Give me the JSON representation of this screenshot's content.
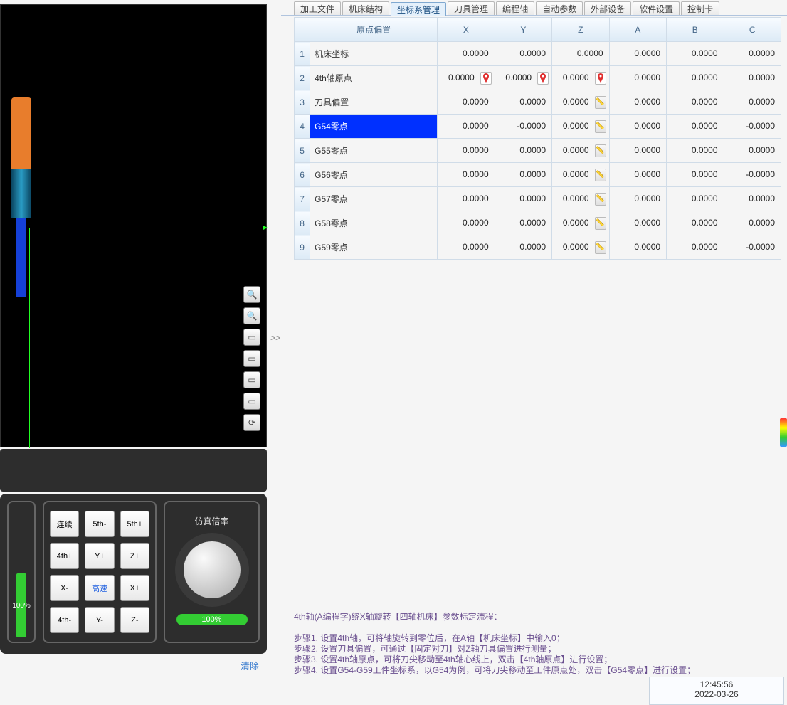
{
  "tabs": [
    "加工文件",
    "机床结构",
    "坐标系管理",
    "刀具管理",
    "编程轴",
    "自动参数",
    "外部设备",
    "软件设置",
    "控制卡"
  ],
  "activeTab": 2,
  "table": {
    "header": {
      "name": "原点偏置",
      "cols": [
        "X",
        "Y",
        "Z",
        "A",
        "B",
        "C"
      ]
    },
    "rows": [
      {
        "idx": "1",
        "name": "机床坐标",
        "vals": [
          "0.0000",
          "0.0000",
          "0.0000",
          "0.0000",
          "0.0000",
          "0.0000"
        ],
        "icons": [
          null,
          null,
          null,
          null,
          null,
          null
        ]
      },
      {
        "idx": "2",
        "name": "4th轴原点",
        "vals": [
          "0.0000",
          "0.0000",
          "0.0000",
          "0.0000",
          "0.0000",
          "0.0000"
        ],
        "icons": [
          "pin",
          "pin",
          "pin",
          null,
          null,
          null
        ]
      },
      {
        "idx": "3",
        "name": "刀具偏置",
        "vals": [
          "0.0000",
          "0.0000",
          "0.0000",
          "0.0000",
          "0.0000",
          "0.0000"
        ],
        "icons": [
          null,
          null,
          "ruler",
          null,
          null,
          null
        ]
      },
      {
        "idx": "4",
        "name": "G54零点",
        "vals": [
          "0.0000",
          "-0.0000",
          "0.0000",
          "0.0000",
          "0.0000",
          "-0.0000"
        ],
        "icons": [
          null,
          null,
          "ruler",
          null,
          null,
          null
        ],
        "selected": true
      },
      {
        "idx": "5",
        "name": "G55零点",
        "vals": [
          "0.0000",
          "0.0000",
          "0.0000",
          "0.0000",
          "0.0000",
          "0.0000"
        ],
        "icons": [
          null,
          null,
          "ruler",
          null,
          null,
          null
        ]
      },
      {
        "idx": "6",
        "name": "G56零点",
        "vals": [
          "0.0000",
          "0.0000",
          "0.0000",
          "0.0000",
          "0.0000",
          "-0.0000"
        ],
        "icons": [
          null,
          null,
          "ruler",
          null,
          null,
          null
        ]
      },
      {
        "idx": "7",
        "name": "G57零点",
        "vals": [
          "0.0000",
          "0.0000",
          "0.0000",
          "0.0000",
          "0.0000",
          "0.0000"
        ],
        "icons": [
          null,
          null,
          "ruler",
          null,
          null,
          null
        ]
      },
      {
        "idx": "8",
        "name": "G58零点",
        "vals": [
          "0.0000",
          "0.0000",
          "0.0000",
          "0.0000",
          "0.0000",
          "0.0000"
        ],
        "icons": [
          null,
          null,
          "ruler",
          null,
          null,
          null
        ]
      },
      {
        "idx": "9",
        "name": "G59零点",
        "vals": [
          "0.0000",
          "0.0000",
          "0.0000",
          "0.0000",
          "0.0000",
          "-0.0000"
        ],
        "icons": [
          null,
          null,
          "ruler",
          null,
          null,
          null
        ]
      }
    ]
  },
  "jog": {
    "speedPct": "100%",
    "buttons": [
      "连续",
      "5th-",
      "5th+",
      "4th+",
      "Y+",
      "Z+",
      "X-",
      "高速",
      "X+",
      "4th-",
      "Y-",
      "Z-"
    ],
    "hlIndex": 7
  },
  "sim": {
    "title": "仿真倍率",
    "value": "100%"
  },
  "clearLabel": "清除",
  "help": {
    "line0": "4th轴(A编程字)绕X轴旋转【四轴机床】参数标定流程：",
    "line1": "步骤1. 设置4th轴，可将轴旋转到零位后，在A轴【机床坐标】中输入0；",
    "line2": "步骤2. 设置刀具偏置，可通过【固定对刀】对Z轴刀具偏置进行测量；",
    "line3": "步骤3. 设置4th轴原点，可将刀尖移动至4th轴心线上，双击【4th轴原点】进行设置；",
    "line4": "步骤4. 设置G54-G59工件坐标系，以G54为例，可将刀尖移动至工件原点处，双击【G54零点】进行设置；"
  },
  "status": {
    "time": "12:45:56",
    "date": "2022-03-26"
  },
  "colors": {
    "selected_bg": "#0030ff",
    "accent_green": "#33cc33",
    "tool_orange": "#e87d2c",
    "tool_blue": "#1540d8"
  }
}
